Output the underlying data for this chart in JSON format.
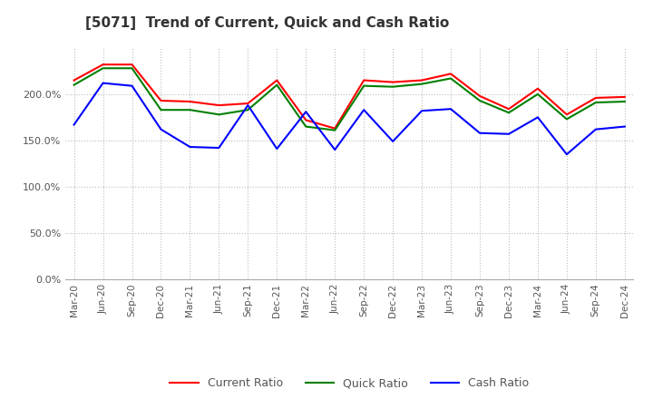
{
  "title": "[5071]  Trend of Current, Quick and Cash Ratio",
  "x_labels": [
    "Mar-20",
    "Jun-20",
    "Sep-20",
    "Dec-20",
    "Mar-21",
    "Jun-21",
    "Sep-21",
    "Dec-21",
    "Mar-22",
    "Jun-22",
    "Sep-22",
    "Dec-22",
    "Mar-23",
    "Jun-23",
    "Sep-23",
    "Dec-23",
    "Mar-24",
    "Jun-24",
    "Sep-24",
    "Dec-24"
  ],
  "current_ratio": [
    215,
    232,
    232,
    193,
    192,
    188,
    190,
    215,
    172,
    163,
    215,
    213,
    215,
    222,
    198,
    184,
    206,
    178,
    196,
    197
  ],
  "quick_ratio": [
    210,
    228,
    228,
    183,
    183,
    178,
    183,
    210,
    165,
    161,
    209,
    208,
    211,
    217,
    193,
    180,
    200,
    173,
    191,
    192
  ],
  "cash_ratio": [
    167,
    212,
    209,
    162,
    143,
    142,
    188,
    141,
    181,
    140,
    183,
    149,
    182,
    184,
    158,
    157,
    175,
    135,
    162,
    165
  ],
  "current_color": "#FF0000",
  "quick_color": "#008000",
  "cash_color": "#0000FF",
  "bg_color": "#FFFFFF",
  "plot_bg_color": "#FFFFFF",
  "ylim": [
    0,
    250
  ],
  "yticks": [
    0,
    50,
    100,
    150,
    200
  ],
  "legend_labels": [
    "Current Ratio",
    "Quick Ratio",
    "Cash Ratio"
  ],
  "line_width": 1.5,
  "grid_color": "#BBBBBB",
  "tick_label_color": "#555555",
  "title_color": "#333333"
}
